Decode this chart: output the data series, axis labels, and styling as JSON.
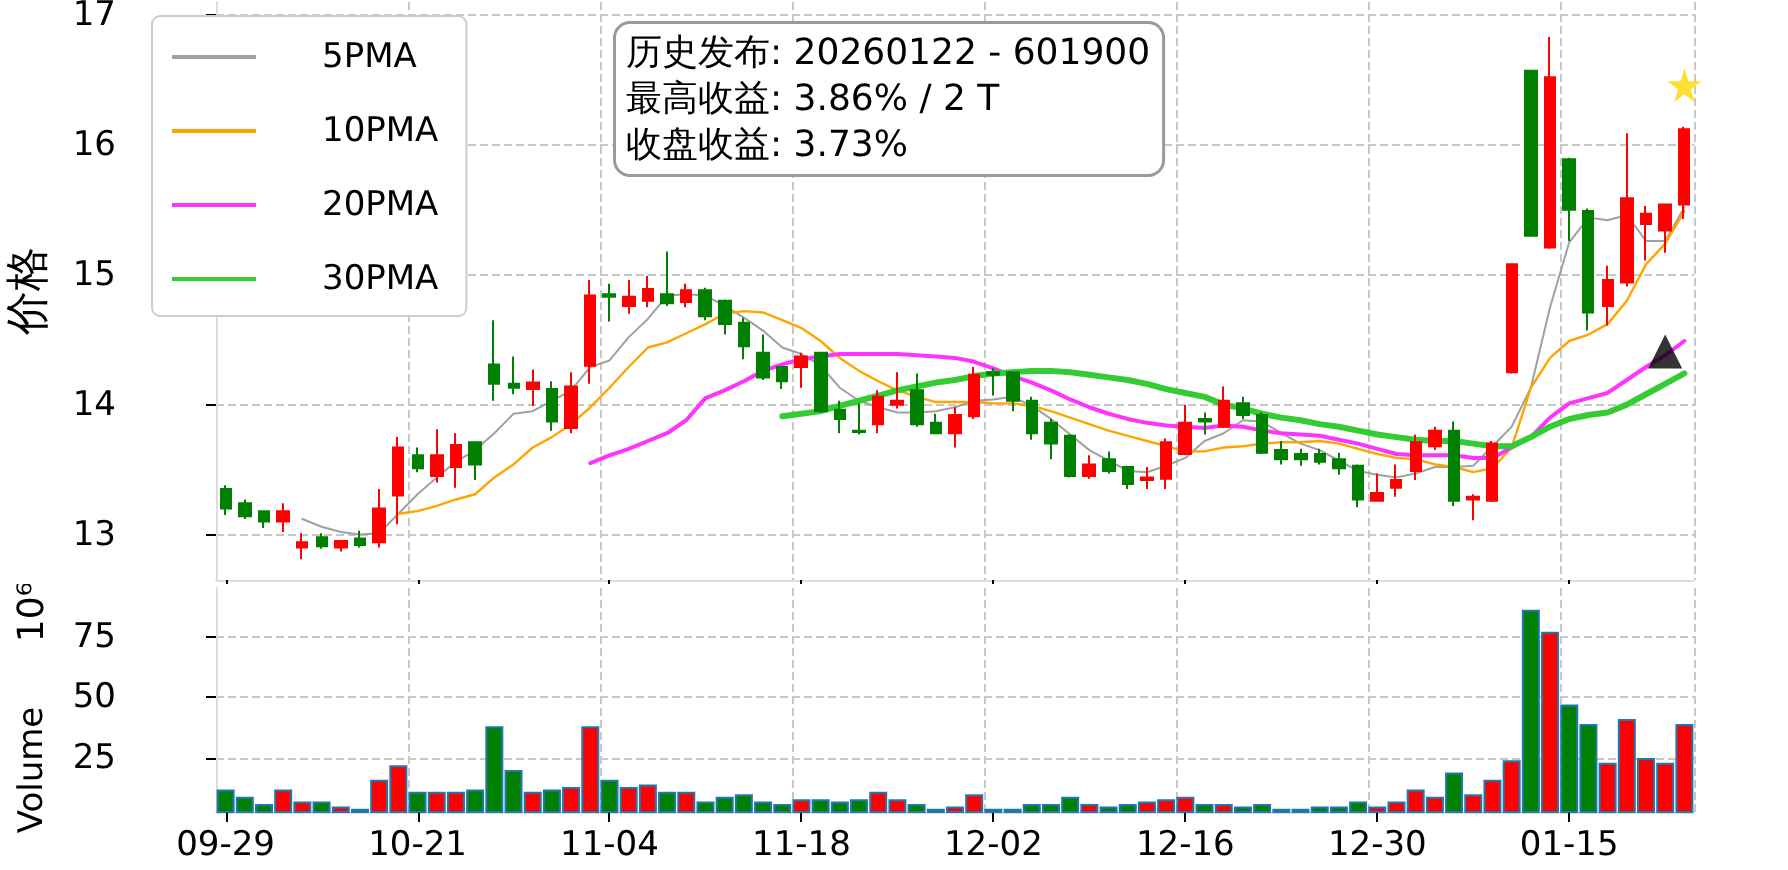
{
  "chart_data": [
    {
      "type": "candlestick",
      "ylabel": "价格",
      "ylim": [
        12.65,
        17.1
      ],
      "yticks": [
        13,
        14,
        15,
        16,
        17
      ],
      "tick_labels": "y",
      "grid": true,
      "legend": "top left",
      "annotations": [
        "历史发布: 20260122 - 601900\n最高收益: 3.86% / 2 T\n收盘收益: 3.73%"
      ],
      "categories": [
        null,
        null,
        null,
        null,
        null,
        null,
        null,
        null,
        null,
        null,
        null,
        null,
        null,
        null,
        null,
        null,
        null,
        null,
        null,
        null,
        null,
        null,
        null,
        null,
        null,
        null,
        null,
        null,
        null,
        null,
        null,
        null,
        null,
        null,
        null,
        null,
        null,
        null,
        null,
        null,
        null,
        null,
        null,
        null,
        null,
        null,
        null,
        null,
        null,
        null,
        null,
        null,
        null,
        null,
        null,
        null,
        null,
        null,
        null,
        null,
        null,
        null,
        null,
        null,
        null,
        null,
        null,
        null,
        null,
        null,
        null,
        null,
        null,
        null,
        null,
        null,
        null
      ],
      "ohlc": [
        [
          13.35,
          13.38,
          13.15,
          13.2
        ],
        [
          13.24,
          13.27,
          13.12,
          13.14
        ],
        [
          13.18,
          13.18,
          13.05,
          13.1
        ],
        [
          13.1,
          13.24,
          13.02,
          13.18
        ],
        [
          12.9,
          13.01,
          12.81,
          12.94
        ],
        [
          12.98,
          13.01,
          12.89,
          12.91
        ],
        [
          12.9,
          12.95,
          12.87,
          12.95
        ],
        [
          12.97,
          13.03,
          12.9,
          12.92
        ],
        [
          12.94,
          13.35,
          12.9,
          13.2
        ],
        [
          13.3,
          13.75,
          13.08,
          13.67
        ],
        [
          13.61,
          13.67,
          13.48,
          13.51
        ],
        [
          13.45,
          13.81,
          13.4,
          13.61
        ],
        [
          13.52,
          13.78,
          13.36,
          13.69
        ],
        [
          13.71,
          13.71,
          13.42,
          13.54
        ],
        [
          14.31,
          14.65,
          14.03,
          14.16
        ],
        [
          14.16,
          14.37,
          14.08,
          14.13
        ],
        [
          14.12,
          14.27,
          13.99,
          14.17
        ],
        [
          14.12,
          14.18,
          13.8,
          13.87
        ],
        [
          13.82,
          14.25,
          13.78,
          14.14
        ],
        [
          14.3,
          14.96,
          14.16,
          14.84
        ],
        [
          14.85,
          14.93,
          14.64,
          14.83
        ],
        [
          14.76,
          14.96,
          14.7,
          14.83
        ],
        [
          14.8,
          14.99,
          14.75,
          14.89
        ],
        [
          14.85,
          15.18,
          14.76,
          14.78
        ],
        [
          14.79,
          14.93,
          14.75,
          14.88
        ],
        [
          14.88,
          14.9,
          14.65,
          14.68
        ],
        [
          14.8,
          14.81,
          14.54,
          14.62
        ],
        [
          14.63,
          14.67,
          14.35,
          14.45
        ],
        [
          14.4,
          14.54,
          14.19,
          14.21
        ],
        [
          14.29,
          14.29,
          14.12,
          14.18
        ],
        [
          14.29,
          14.4,
          14.13,
          14.37
        ],
        [
          14.4,
          14.4,
          13.94,
          13.95
        ],
        [
          13.96,
          14.03,
          13.78,
          13.89
        ],
        [
          13.8,
          14.01,
          13.77,
          13.79
        ],
        [
          13.85,
          14.11,
          13.78,
          14.06
        ],
        [
          14.0,
          14.25,
          13.97,
          14.03
        ],
        [
          14.11,
          14.24,
          13.83,
          13.85
        ],
        [
          13.86,
          13.93,
          13.78,
          13.78
        ],
        [
          13.78,
          13.98,
          13.67,
          13.92
        ],
        [
          13.91,
          14.29,
          13.89,
          14.23
        ],
        [
          14.25,
          14.28,
          14.07,
          14.23
        ],
        [
          14.25,
          14.25,
          13.95,
          14.03
        ],
        [
          14.03,
          14.06,
          13.73,
          13.78
        ],
        [
          13.86,
          13.89,
          13.58,
          13.7
        ],
        [
          13.76,
          13.77,
          13.44,
          13.45
        ],
        [
          13.45,
          13.61,
          13.43,
          13.54
        ],
        [
          13.58,
          13.64,
          13.47,
          13.49
        ],
        [
          13.52,
          13.53,
          13.35,
          13.39
        ],
        [
          13.42,
          13.52,
          13.35,
          13.44
        ],
        [
          13.43,
          13.74,
          13.35,
          13.71
        ],
        [
          13.62,
          14.0,
          13.61,
          13.86
        ],
        [
          13.89,
          13.94,
          13.77,
          13.87
        ],
        [
          13.83,
          14.14,
          13.82,
          14.03
        ],
        [
          14.01,
          14.06,
          13.89,
          13.92
        ],
        [
          13.92,
          13.94,
          13.62,
          13.63
        ],
        [
          13.65,
          13.72,
          13.54,
          13.58
        ],
        [
          13.62,
          13.66,
          13.53,
          13.58
        ],
        [
          13.62,
          13.66,
          13.54,
          13.56
        ],
        [
          13.58,
          13.63,
          13.46,
          13.51
        ],
        [
          13.53,
          13.54,
          13.21,
          13.27
        ],
        [
          13.26,
          13.47,
          13.26,
          13.32
        ],
        [
          13.36,
          13.54,
          13.29,
          13.42
        ],
        [
          13.49,
          13.77,
          13.42,
          13.71
        ],
        [
          13.68,
          13.83,
          13.65,
          13.8
        ],
        [
          13.8,
          13.87,
          13.22,
          13.26
        ],
        [
          13.27,
          13.31,
          13.11,
          13.29
        ],
        [
          13.26,
          13.72,
          13.25,
          13.7
        ],
        [
          14.25,
          15.08,
          14.24,
          15.08
        ],
        [
          16.57,
          16.57,
          15.3,
          15.3
        ],
        [
          15.21,
          16.83,
          15.2,
          16.52
        ],
        [
          15.89,
          15.9,
          15.26,
          15.5
        ],
        [
          15.49,
          15.51,
          14.57,
          14.71
        ],
        [
          14.76,
          15.07,
          14.61,
          14.96
        ],
        [
          14.94,
          16.09,
          14.91,
          15.59
        ],
        [
          15.39,
          15.53,
          15.11,
          15.47
        ],
        [
          15.34,
          15.54,
          15.17,
          15.54
        ],
        [
          15.54,
          16.14,
          15.43,
          16.12
        ]
      ],
      "colors": [
        "#008000",
        "#008000",
        "#008000",
        "#ff0000",
        "#ff0000",
        "#008000",
        "#ff0000",
        "#008000",
        "#ff0000",
        "#ff0000",
        "#008000",
        "#ff0000",
        "#ff0000",
        "#008000",
        "#008000",
        "#008000",
        "#ff0000",
        "#008000",
        "#ff0000",
        "#ff0000",
        "#008000",
        "#ff0000",
        "#ff0000",
        "#008000",
        "#ff0000",
        "#008000",
        "#008000",
        "#008000",
        "#008000",
        "#008000",
        "#ff0000",
        "#008000",
        "#008000",
        "#008000",
        "#ff0000",
        "#ff0000",
        "#008000",
        "#008000",
        "#ff0000",
        "#ff0000",
        "#008000",
        "#008000",
        "#008000",
        "#008000",
        "#008000",
        "#ff0000",
        "#008000",
        "#008000",
        "#ff0000",
        "#ff0000",
        "#ff0000",
        "#008000",
        "#ff0000",
        "#008000",
        "#008000",
        "#008000",
        "#008000",
        "#008000",
        "#008000",
        "#008000",
        "#ff0000",
        "#ff0000",
        "#ff0000",
        "#ff0000",
        "#008000",
        "#ff0000",
        "#ff0000",
        "#ff0000",
        "#008000",
        "#ff0000",
        "#008000",
        "#008000",
        "#ff0000",
        "#ff0000",
        "#ff0000",
        "#ff0000",
        "#ff0000"
      ],
      "series": [
        {
          "type": "line",
          "name": "5PMA",
          "color": "#a0a0a0",
          "values": [
            null,
            null,
            null,
            null,
            13.12,
            13.06,
            13.02,
            13.0,
            13.01,
            13.16,
            13.31,
            13.44,
            13.56,
            13.65,
            13.78,
            13.93,
            13.95,
            14.03,
            14.11,
            14.29,
            14.34,
            14.52,
            14.66,
            14.84,
            14.85,
            14.84,
            14.76,
            14.67,
            14.57,
            14.44,
            14.39,
            14.3,
            14.13,
            14.03,
            13.98,
            13.94,
            13.94,
            13.95,
            13.98,
            14.03,
            14.04,
            14.06,
            13.99,
            13.89,
            13.77,
            13.65,
            13.57,
            13.49,
            13.48,
            13.53,
            13.59,
            13.72,
            13.78,
            13.88,
            13.87,
            13.78,
            13.7,
            13.65,
            13.57,
            13.49,
            13.46,
            13.44,
            13.47,
            13.52,
            13.52,
            13.53,
            null,
            13.83,
            14.13,
            14.75,
            15.25,
            15.44,
            15.42,
            15.46,
            15.26,
            15.26,
            15.52
          ]
        },
        {
          "type": "line",
          "name": "10PMA",
          "color": "#ffa500",
          "values": [
            null,
            null,
            null,
            null,
            null,
            null,
            null,
            null,
            null,
            13.16,
            13.18,
            13.22,
            13.27,
            13.31,
            13.44,
            13.54,
            13.67,
            13.75,
            13.85,
            13.98,
            14.13,
            14.29,
            14.44,
            14.48,
            14.55,
            14.62,
            14.7,
            14.72,
            14.71,
            14.65,
            14.59,
            14.49,
            14.36,
            14.26,
            14.18,
            14.11,
            14.06,
            14.02,
            14.02,
            14.02,
            14.01,
            14.01,
            13.99,
            13.95,
            13.9,
            13.85,
            13.8,
            13.76,
            13.72,
            13.68,
            13.64,
            13.64,
            13.67,
            13.68,
            13.7,
            13.71,
            13.71,
            13.72,
            13.7,
            13.66,
            13.62,
            13.59,
            13.58,
            13.54,
            13.52,
            13.48,
            13.51,
            13.67,
            14.13,
            14.36,
            14.49,
            14.54,
            14.62,
            14.8,
            15.08,
            15.24,
            15.49
          ]
        },
        {
          "type": "line",
          "name": "20PMA",
          "color": "#ff33ff",
          "values": [
            null,
            null,
            null,
            null,
            null,
            null,
            null,
            null,
            null,
            null,
            null,
            null,
            null,
            null,
            null,
            null,
            null,
            null,
            null,
            13.55,
            13.61,
            13.66,
            13.72,
            13.78,
            13.88,
            14.05,
            14.11,
            14.18,
            14.26,
            14.31,
            14.35,
            14.37,
            14.39,
            14.39,
            14.39,
            14.39,
            14.38,
            14.37,
            14.36,
            14.33,
            14.28,
            14.22,
            14.17,
            14.11,
            14.04,
            13.98,
            13.93,
            13.89,
            13.86,
            13.84,
            13.83,
            13.82,
            13.84,
            13.83,
            13.8,
            13.78,
            13.77,
            13.76,
            13.73,
            13.7,
            13.66,
            13.62,
            13.61,
            13.61,
            13.61,
            13.59,
            13.59,
            13.67,
            13.75,
            13.9,
            14.01,
            14.05,
            14.09,
            14.19,
            14.29,
            14.38,
            14.49
          ]
        },
        {
          "type": "line",
          "name": "30PMA",
          "color": "#33cc33",
          "values": [
            null,
            null,
            null,
            null,
            null,
            null,
            null,
            null,
            null,
            null,
            null,
            null,
            null,
            null,
            null,
            null,
            null,
            null,
            null,
            null,
            null,
            null,
            null,
            null,
            null,
            null,
            null,
            null,
            null,
            13.91,
            13.93,
            13.95,
            13.99,
            14.03,
            14.07,
            14.11,
            14.14,
            14.17,
            14.19,
            14.22,
            14.24,
            14.25,
            14.26,
            14.26,
            14.25,
            14.23,
            14.21,
            14.19,
            14.16,
            14.12,
            14.09,
            14.06,
            14.0,
            13.97,
            13.93,
            13.9,
            13.88,
            13.85,
            13.83,
            13.8,
            13.77,
            13.75,
            13.73,
            13.72,
            13.72,
            13.7,
            13.68,
            13.68,
            13.75,
            13.83,
            13.89,
            13.92,
            13.94,
            14.0,
            14.08,
            14.16,
            14.24
          ]
        },
        {
          "type": "scatter",
          "marker": "star",
          "color": "#ffd700",
          "values": [
            null,
            null,
            null,
            null,
            null,
            null,
            null,
            null,
            null,
            null,
            null,
            null,
            null,
            null,
            null,
            null,
            null,
            null,
            null,
            null,
            null,
            null,
            null,
            null,
            null,
            null,
            null,
            null,
            null,
            null,
            null,
            null,
            null,
            null,
            null,
            null,
            null,
            null,
            null,
            null,
            null,
            null,
            null,
            null,
            null,
            null,
            null,
            null,
            null,
            null,
            null,
            null,
            null,
            null,
            null,
            null,
            null,
            null,
            null,
            null,
            null,
            null,
            null,
            null,
            null,
            null,
            null,
            null,
            null,
            null,
            null,
            null,
            null,
            null,
            null,
            null,
            16.46
          ]
        },
        {
          "type": "scatter",
          "marker": "triangle",
          "color": "#000000",
          "values": [
            null,
            null,
            null,
            null,
            null,
            null,
            null,
            null,
            null,
            null,
            null,
            null,
            null,
            null,
            null,
            null,
            null,
            null,
            null,
            null,
            null,
            null,
            null,
            null,
            null,
            null,
            null,
            null,
            null,
            null,
            null,
            null,
            null,
            null,
            null,
            null,
            null,
            null,
            null,
            null,
            null,
            null,
            null,
            null,
            null,
            null,
            null,
            null,
            null,
            null,
            null,
            null,
            null,
            null,
            null,
            null,
            null,
            null,
            null,
            null,
            null,
            null,
            null,
            null,
            null,
            null,
            null,
            null,
            null,
            null,
            null,
            null,
            null,
            null,
            null,
            14.41,
            null
          ]
        }
      ]
    },
    {
      "type": "bar",
      "ylabel": "Volume",
      "ylim": [
        2.7,
        95
      ],
      "yticks": [
        25,
        50,
        75
      ],
      "grid": true,
      "annotations": [
        "10⁶"
      ],
      "categories": [
        "09-29",
        null,
        null,
        null,
        null,
        null,
        null,
        null,
        null,
        null,
        "10-21",
        null,
        null,
        null,
        null,
        null,
        null,
        null,
        null,
        null,
        "11-04",
        null,
        null,
        null,
        null,
        null,
        null,
        null,
        null,
        null,
        "11-18",
        null,
        null,
        null,
        null,
        null,
        null,
        null,
        null,
        null,
        "12-02",
        null,
        null,
        null,
        null,
        null,
        null,
        null,
        null,
        null,
        "12-16",
        null,
        null,
        null,
        null,
        null,
        null,
        null,
        null,
        null,
        "12-30",
        null,
        null,
        null,
        null,
        null,
        null,
        null,
        null,
        null,
        "01-15",
        null,
        null,
        null,
        null,
        null,
        null
      ],
      "values": [
        12,
        9,
        6,
        12,
        7,
        7,
        5,
        4,
        16,
        22,
        11,
        11,
        11,
        12,
        38,
        20,
        11,
        12,
        13,
        38,
        16,
        13,
        14,
        11,
        11,
        7,
        9,
        10,
        7,
        6,
        8,
        8,
        7,
        8,
        11,
        8,
        6,
        4,
        5,
        10,
        4,
        4,
        6,
        6,
        9,
        6,
        5,
        6,
        7,
        8,
        9,
        6,
        6,
        5,
        6,
        4,
        4,
        5,
        5,
        7,
        5,
        7,
        12,
        9,
        19,
        10,
        16,
        24,
        86,
        77,
        47,
        39,
        23,
        41,
        25,
        23,
        39
      ],
      "colors": [
        "#008000",
        "#008000",
        "#008000",
        "#ff0000",
        "#ff0000",
        "#008000",
        "#ff0000",
        "#008000",
        "#ff0000",
        "#ff0000",
        "#008000",
        "#ff0000",
        "#ff0000",
        "#008000",
        "#008000",
        "#008000",
        "#ff0000",
        "#008000",
        "#ff0000",
        "#ff0000",
        "#008000",
        "#ff0000",
        "#ff0000",
        "#008000",
        "#ff0000",
        "#008000",
        "#008000",
        "#008000",
        "#008000",
        "#008000",
        "#ff0000",
        "#008000",
        "#008000",
        "#008000",
        "#ff0000",
        "#ff0000",
        "#008000",
        "#008000",
        "#ff0000",
        "#ff0000",
        "#008000",
        "#008000",
        "#008000",
        "#008000",
        "#008000",
        "#ff0000",
        "#008000",
        "#008000",
        "#ff0000",
        "#ff0000",
        "#ff0000",
        "#008000",
        "#ff0000",
        "#008000",
        "#008000",
        "#008000",
        "#008000",
        "#008000",
        "#008000",
        "#008000",
        "#ff0000",
        "#ff0000",
        "#ff0000",
        "#ff0000",
        "#008000",
        "#ff0000",
        "#ff0000",
        "#ff0000",
        "#008000",
        "#ff0000",
        "#008000",
        "#008000",
        "#ff0000",
        "#ff0000",
        "#ff0000",
        "#ff0000",
        "#ff0000"
      ]
    }
  ]
}
